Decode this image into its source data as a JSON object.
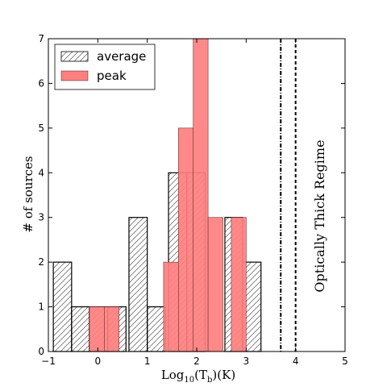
{
  "chart_data": {
    "type": "bar",
    "title": "",
    "xlabel": "Log",
    "xlabel_sub": "10",
    "xlabel_rest": "(T",
    "xlabel_sub2": "b",
    "xlabel_end": ")(K)",
    "ylabel": "# of sources",
    "xlim": [
      -1,
      5
    ],
    "ylim": [
      0,
      7
    ],
    "xticks": [
      "−1",
      "0",
      "1",
      "2",
      "3",
      "4",
      "5"
    ],
    "yticks": [
      "0",
      "1",
      "2",
      "3",
      "4",
      "5",
      "6",
      "7"
    ],
    "legend_position": "top-left",
    "colors": {
      "peak": "#ff7f7f",
      "average_hatch": "#333333"
    },
    "series": [
      {
        "name": "average",
        "style": "hatched",
        "bins": [
          {
            "x0": -0.9,
            "x1": -0.53,
            "value": 2
          },
          {
            "x0": -0.53,
            "x1": -0.17,
            "value": 1
          },
          {
            "x0": -0.17,
            "x1": 0.2,
            "value": 1
          },
          {
            "x0": 0.2,
            "x1": 0.57,
            "value": 1
          },
          {
            "x0": 0.63,
            "x1": 1.0,
            "value": 3
          },
          {
            "x0": 1.0,
            "x1": 1.37,
            "value": 1
          },
          {
            "x0": 1.43,
            "x1": 1.8,
            "value": 4
          },
          {
            "x0": 1.8,
            "x1": 2.17,
            "value": 4
          },
          {
            "x0": 2.57,
            "x1": 2.93,
            "value": 3
          },
          {
            "x0": 2.93,
            "x1": 3.3,
            "value": 2
          }
        ]
      },
      {
        "name": "peak",
        "style": "filled",
        "bins": [
          {
            "x0": -0.17,
            "x1": 0.13,
            "value": 1
          },
          {
            "x0": 0.13,
            "x1": 0.43,
            "value": 1
          },
          {
            "x0": 1.33,
            "x1": 1.63,
            "value": 2
          },
          {
            "x0": 1.63,
            "x1": 1.93,
            "value": 5
          },
          {
            "x0": 1.93,
            "x1": 2.23,
            "value": 7
          },
          {
            "x0": 2.23,
            "x1": 2.53,
            "value": 3
          },
          {
            "x0": 2.7,
            "x1": 3.0,
            "value": 3
          }
        ]
      }
    ],
    "vlines": [
      {
        "x": 3.7,
        "style": "dashdot"
      },
      {
        "x": 4.0,
        "style": "dashed"
      }
    ],
    "annotation": "Optically Thick Regime"
  }
}
